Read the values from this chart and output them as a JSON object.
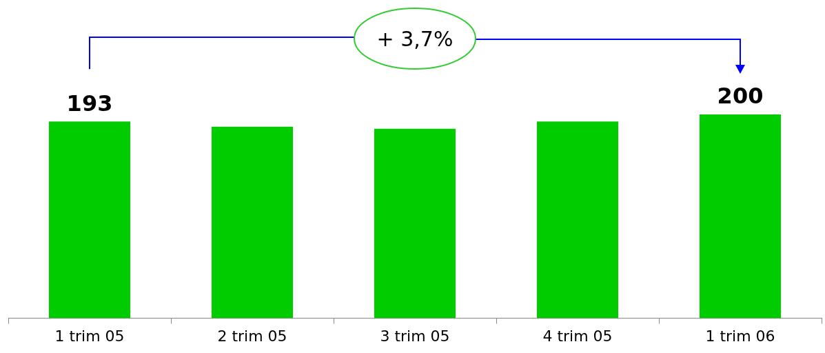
{
  "chart_data": {
    "type": "bar",
    "categories": [
      "1 trim 05",
      "2 trim 05",
      "3 trim 05",
      "4 trim 05",
      "1 trim 06"
    ],
    "values": [
      193,
      188,
      186,
      193,
      200
    ],
    "color": "#00cc00",
    "value_labels": [
      "193",
      null,
      null,
      null,
      "200"
    ],
    "tick_labels": "x",
    "grid": false,
    "legend": false,
    "annotations": [
      "+ 3,7%"
    ]
  }
}
